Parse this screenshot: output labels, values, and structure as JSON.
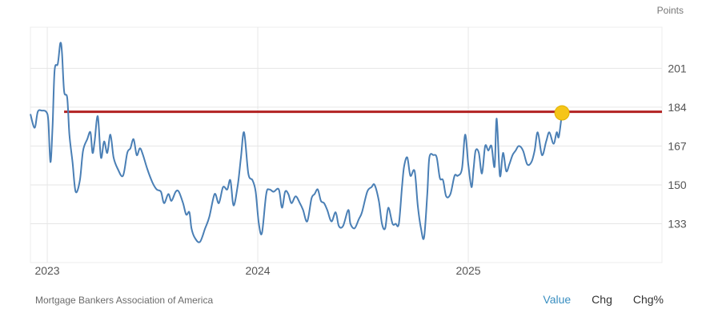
{
  "chart_data": {
    "type": "line",
    "units_label": "Points",
    "y_ticks": [
      133,
      150,
      167,
      184,
      201
    ],
    "ylim": [
      116,
      219
    ],
    "x_tick_labels": [
      "2023",
      "2024",
      "2025"
    ],
    "x_tick_positions": [
      2023.0,
      2024.0,
      2025.0
    ],
    "xlim": [
      2022.92,
      2025.92
    ],
    "grid": true,
    "highlight_value": 181.5,
    "reference_line": 182,
    "series": [
      {
        "color": "#4a7fb5",
        "points": [
          [
            2022.92,
            181
          ],
          [
            2022.94,
            175
          ],
          [
            2022.955,
            182
          ],
          [
            2022.975,
            182.5
          ],
          [
            2022.995,
            182
          ],
          [
            2023.005,
            178
          ],
          [
            2023.015,
            160
          ],
          [
            2023.025,
            175
          ],
          [
            2023.035,
            200
          ],
          [
            2023.05,
            203
          ],
          [
            2023.062,
            212
          ],
          [
            2023.07,
            208
          ],
          [
            2023.08,
            191
          ],
          [
            2023.095,
            188
          ],
          [
            2023.105,
            172
          ],
          [
            2023.12,
            160
          ],
          [
            2023.135,
            147
          ],
          [
            2023.155,
            152
          ],
          [
            2023.17,
            165
          ],
          [
            2023.19,
            170
          ],
          [
            2023.205,
            173
          ],
          [
            2023.215,
            164
          ],
          [
            2023.225,
            169
          ],
          [
            2023.24,
            180
          ],
          [
            2023.255,
            162
          ],
          [
            2023.27,
            169
          ],
          [
            2023.285,
            164
          ],
          [
            2023.3,
            172
          ],
          [
            2023.315,
            162
          ],
          [
            2023.335,
            157
          ],
          [
            2023.36,
            154
          ],
          [
            2023.38,
            164
          ],
          [
            2023.395,
            166
          ],
          [
            2023.41,
            170
          ],
          [
            2023.425,
            163
          ],
          [
            2023.44,
            166
          ],
          [
            2023.455,
            163
          ],
          [
            2023.475,
            157
          ],
          [
            2023.5,
            151
          ],
          [
            2023.52,
            148
          ],
          [
            2023.54,
            147
          ],
          [
            2023.555,
            142
          ],
          [
            2023.575,
            146
          ],
          [
            2023.59,
            143
          ],
          [
            2023.61,
            147
          ],
          [
            2023.625,
            147
          ],
          [
            2023.645,
            142
          ],
          [
            2023.66,
            137
          ],
          [
            2023.675,
            138
          ],
          [
            2023.685,
            131
          ],
          [
            2023.7,
            127
          ],
          [
            2023.725,
            125
          ],
          [
            2023.75,
            131
          ],
          [
            2023.77,
            136
          ],
          [
            2023.795,
            146
          ],
          [
            2023.815,
            142
          ],
          [
            2023.835,
            149
          ],
          [
            2023.855,
            148
          ],
          [
            2023.87,
            152
          ],
          [
            2023.885,
            141
          ],
          [
            2023.905,
            150
          ],
          [
            2023.92,
            162
          ],
          [
            2023.935,
            173
          ],
          [
            2023.955,
            155
          ],
          [
            2023.975,
            152
          ],
          [
            2023.99,
            147
          ],
          [
            2024.005,
            133
          ],
          [
            2024.02,
            129
          ],
          [
            2024.04,
            146
          ],
          [
            2024.055,
            148
          ],
          [
            2024.075,
            147
          ],
          [
            2024.1,
            148
          ],
          [
            2024.115,
            140
          ],
          [
            2024.13,
            147
          ],
          [
            2024.145,
            146
          ],
          [
            2024.16,
            142
          ],
          [
            2024.18,
            145
          ],
          [
            2024.2,
            142
          ],
          [
            2024.215,
            139
          ],
          [
            2024.235,
            134
          ],
          [
            2024.255,
            144
          ],
          [
            2024.27,
            146
          ],
          [
            2024.285,
            148
          ],
          [
            2024.3,
            143
          ],
          [
            2024.315,
            142
          ],
          [
            2024.33,
            139
          ],
          [
            2024.35,
            134
          ],
          [
            2024.37,
            138
          ],
          [
            2024.385,
            132
          ],
          [
            2024.405,
            132
          ],
          [
            2024.43,
            139
          ],
          [
            2024.44,
            133
          ],
          [
            2024.46,
            131
          ],
          [
            2024.48,
            135
          ],
          [
            2024.495,
            138
          ],
          [
            2024.52,
            147
          ],
          [
            2024.54,
            149
          ],
          [
            2024.555,
            150
          ],
          [
            2024.575,
            143
          ],
          [
            2024.59,
            133
          ],
          [
            2024.605,
            131
          ],
          [
            2024.62,
            140
          ],
          [
            2024.64,
            133
          ],
          [
            2024.655,
            133
          ],
          [
            2024.67,
            133
          ],
          [
            2024.685,
            149
          ],
          [
            2024.695,
            158
          ],
          [
            2024.71,
            162
          ],
          [
            2024.725,
            154
          ],
          [
            2024.745,
            156
          ],
          [
            2024.76,
            141
          ],
          [
            2024.775,
            131
          ],
          [
            2024.79,
            127
          ],
          [
            2024.805,
            146
          ],
          [
            2024.815,
            162
          ],
          [
            2024.835,
            163
          ],
          [
            2024.85,
            162
          ],
          [
            2024.865,
            153
          ],
          [
            2024.88,
            152
          ],
          [
            2024.895,
            145
          ],
          [
            2024.915,
            146
          ],
          [
            2024.935,
            154
          ],
          [
            2024.95,
            154
          ],
          [
            2024.97,
            157
          ],
          [
            2024.985,
            172
          ],
          [
            2025.0,
            159
          ],
          [
            2025.015,
            149
          ],
          [
            2025.025,
            157
          ],
          [
            2025.035,
            165
          ],
          [
            2025.05,
            164
          ],
          [
            2025.065,
            155
          ],
          [
            2025.08,
            167
          ],
          [
            2025.095,
            165
          ],
          [
            2025.11,
            167
          ],
          [
            2025.125,
            158
          ],
          [
            2025.135,
            179
          ],
          [
            2025.15,
            154
          ],
          [
            2025.165,
            164
          ],
          [
            2025.18,
            156
          ],
          [
            2025.195,
            159
          ],
          [
            2025.21,
            163
          ],
          [
            2025.225,
            165
          ],
          [
            2025.24,
            167
          ],
          [
            2025.26,
            165
          ],
          [
            2025.28,
            159
          ],
          [
            2025.3,
            160
          ],
          [
            2025.315,
            165
          ],
          [
            2025.33,
            173
          ],
          [
            2025.35,
            163
          ],
          [
            2025.37,
            169
          ],
          [
            2025.385,
            173
          ],
          [
            2025.405,
            168
          ],
          [
            2025.42,
            173
          ],
          [
            2025.43,
            171
          ],
          [
            2025.445,
            181.5
          ]
        ]
      }
    ]
  },
  "footer": {
    "source": "Mortgage Bankers Association of America",
    "tabs": [
      "Value",
      "Chg",
      "Chg%"
    ],
    "active_tab": "Value"
  },
  "colors": {
    "line": "#4a7fb5",
    "reference_line": "#b22222",
    "highlight_dot": "#f5c518",
    "grid": "#e6e6e6",
    "active_tab": "#3a8fc1"
  }
}
